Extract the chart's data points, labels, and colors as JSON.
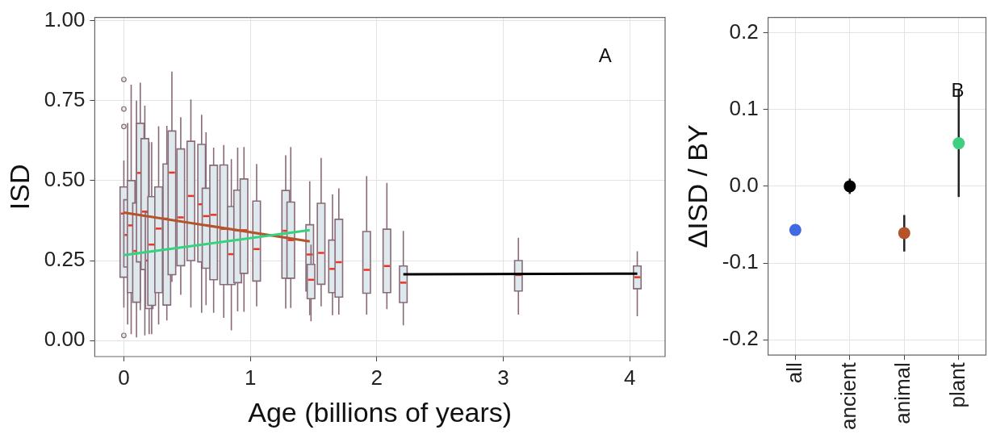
{
  "chart_data": [
    {
      "type": "box",
      "xlabel": "Age (billions of years)",
      "ylabel": "ISD",
      "annotations": [
        "A"
      ],
      "xlim": [
        -0.23,
        4.28
      ],
      "xticks": [
        0,
        1,
        2,
        3,
        4
      ],
      "ylim": [
        -0.05,
        1.01
      ],
      "yticks": [
        {
          "value": 0,
          "label": "0.00"
        },
        {
          "value": 0.25,
          "label": "0.25"
        },
        {
          "value": 0.5,
          "label": "0.50"
        },
        {
          "value": 0.75,
          "label": "0.75"
        },
        {
          "value": 1,
          "label": "1.00"
        }
      ],
      "grid": true,
      "legend": false,
      "color": "#dde9ec",
      "x": [
        0,
        0.03,
        0.058,
        0.1,
        0.13,
        0.166,
        0.2,
        0.22,
        0.275,
        0.34,
        0.38,
        0.45,
        0.53,
        0.615,
        0.65,
        0.71,
        0.79,
        0.85,
        0.9,
        0.95,
        1.05,
        1.28,
        1.32,
        1.47,
        1.48,
        1.56,
        1.65,
        1.7,
        1.92,
        2.08,
        2.21,
        3.12,
        4.06
      ],
      "boxes": [
        {
          "low": 0.103,
          "q1": 0.198,
          "median": 0.397,
          "q3": 0.48,
          "high": 0.563,
          "outliers": [
            0.816,
            0.724,
            0.669,
            0.016
          ]
        },
        {
          "low": 0.05,
          "q1": 0.23,
          "median": 0.33,
          "q3": 0.44,
          "high": 0.68
        },
        {
          "low": 0.02,
          "q1": 0.15,
          "median": 0.36,
          "q3": 0.5,
          "high": 0.8
        },
        {
          "low": 0.01,
          "q1": 0.12,
          "median": 0.28,
          "q3": 0.43,
          "high": 0.75
        },
        {
          "low": 0.095,
          "q1": 0.246,
          "median": 0.524,
          "q3": 0.679,
          "high": 0.806
        },
        {
          "low": 0.016,
          "q1": 0.222,
          "median": 0.403,
          "q3": 0.631,
          "high": 0.734
        },
        {
          "low": 0.02,
          "q1": 0.1,
          "median": 0.25,
          "q3": 0.4,
          "high": 0.62
        },
        {
          "low": 0.02,
          "q1": 0.11,
          "median": 0.3,
          "q3": 0.45,
          "high": 0.62
        },
        {
          "low": 0.05,
          "q1": 0.15,
          "median": 0.35,
          "q3": 0.48,
          "high": 0.67
        },
        {
          "low": 0.063,
          "q1": 0.111,
          "median": 0.381,
          "q3": 0.552,
          "high": 0.671
        },
        {
          "low": 0.183,
          "q1": 0.206,
          "median": 0.525,
          "q3": 0.655,
          "high": 0.841
        },
        {
          "low": 0.143,
          "q1": 0.234,
          "median": 0.385,
          "q3": 0.599,
          "high": 0.698
        },
        {
          "low": 0.103,
          "q1": 0.25,
          "median": 0.452,
          "q3": 0.623,
          "high": 0.754
        },
        {
          "low": 0.087,
          "q1": 0.246,
          "median": 0.426,
          "q3": 0.613,
          "high": 0.706
        },
        {
          "low": 0.111,
          "q1": 0.226,
          "median": 0.389,
          "q3": 0.476,
          "high": 0.651
        },
        {
          "low": 0.087,
          "q1": 0.19,
          "median": 0.393,
          "q3": 0.548,
          "high": 0.603
        },
        {
          "low": 0.071,
          "q1": 0.175,
          "median": 0.349,
          "q3": 0.549,
          "high": 0.611
        },
        {
          "low": 0.032,
          "q1": 0.175,
          "median": 0.27,
          "q3": 0.419,
          "high": 0.567
        },
        {
          "low": 0.091,
          "q1": 0.181,
          "median": 0.345,
          "q3": 0.47,
          "high": 0.603
        },
        {
          "low": 0.09,
          "q1": 0.21,
          "median": 0.345,
          "q3": 0.505,
          "high": 0.605
        },
        {
          "low": 0.107,
          "q1": 0.186,
          "median": 0.286,
          "q3": 0.436,
          "high": 0.552
        },
        {
          "low": 0.1,
          "q1": 0.195,
          "median": 0.343,
          "q3": 0.469,
          "high": 0.579
        },
        {
          "low": 0.102,
          "q1": 0.195,
          "median": 0.314,
          "q3": 0.433,
          "high": 0.605
        },
        {
          "low": 0.079,
          "q1": 0.155,
          "median": 0.269,
          "q3": 0.362,
          "high": 0.498
        },
        {
          "low": 0.06,
          "q1": 0.131,
          "median": 0.19,
          "q3": 0.238,
          "high": 0.3
        },
        {
          "low": 0.107,
          "q1": 0.176,
          "median": 0.274,
          "q3": 0.429,
          "high": 0.571
        },
        {
          "low": 0.079,
          "q1": 0.15,
          "median": 0.224,
          "q3": 0.314,
          "high": 0.457
        },
        {
          "low": 0.081,
          "q1": 0.136,
          "median": 0.245,
          "q3": 0.379,
          "high": 0.476
        },
        {
          "low": 0.081,
          "q1": 0.148,
          "median": 0.221,
          "q3": 0.341,
          "high": 0.514
        },
        {
          "low": 0.098,
          "q1": 0.15,
          "median": 0.233,
          "q3": 0.348,
          "high": 0.493
        },
        {
          "low": 0.048,
          "q1": 0.119,
          "median": 0.181,
          "q3": 0.233,
          "high": 0.343
        },
        {
          "low": 0.081,
          "q1": 0.155,
          "median": 0.205,
          "q3": 0.25,
          "high": 0.321
        },
        {
          "low": 0.076,
          "q1": 0.162,
          "median": 0.198,
          "q3": 0.233,
          "high": 0.279
        }
      ],
      "series": [
        {
          "type": "line",
          "color": "#36d27e",
          "x": [
            0,
            1.47
          ],
          "values": [
            0.267,
            0.345
          ]
        },
        {
          "type": "line",
          "color": "#b5532a",
          "x": [
            0,
            1.47
          ],
          "values": [
            0.4,
            0.31
          ]
        },
        {
          "type": "line",
          "color": "#000000",
          "x": [
            2.21,
            4.06
          ],
          "values": [
            0.207,
            0.209
          ]
        }
      ]
    },
    {
      "type": "scatter",
      "ylabel": "ΔISD / BY",
      "annotations": [
        "B"
      ],
      "categories": [
        "all",
        "ancient",
        "animal",
        "plant"
      ],
      "values": [
        -0.057,
        0,
        -0.061,
        0.056
      ],
      "colors": [
        "#4169e1",
        "#000000",
        "#b5532a",
        "#3ecf80"
      ],
      "errors": [
        null,
        [
          -0.01,
          0.01
        ],
        [
          -0.085,
          -0.0375
        ],
        [
          -0.014,
          0.125
        ]
      ],
      "ylim": [
        -0.22,
        0.22
      ],
      "yticks": [
        -0.2,
        -0.1,
        {
          "value": 0,
          "label": "0.0"
        },
        0.1,
        0.2
      ],
      "grid": true,
      "legend": false,
      "marker": "circle"
    }
  ]
}
